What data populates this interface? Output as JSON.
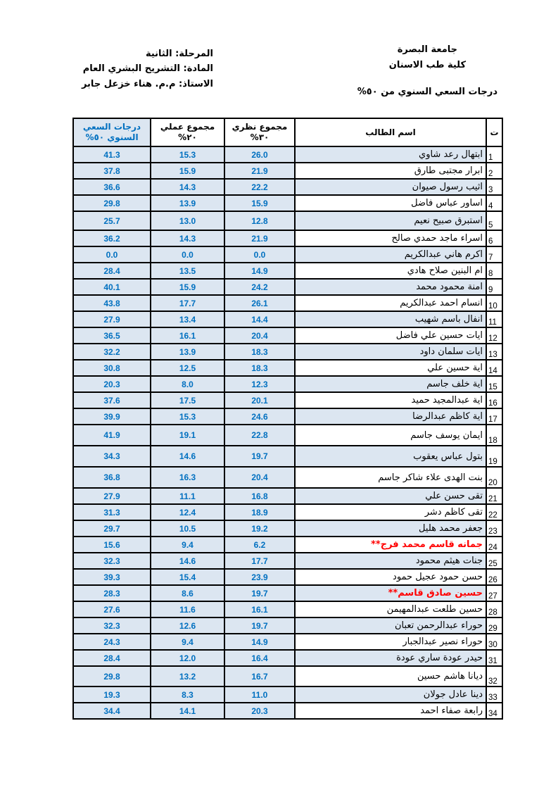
{
  "header": {
    "university": "جامعة البصرة",
    "college": "كلية طب الاسنان",
    "subtitle": "درجات السعي  السنوي من ٥٠%",
    "stage": "المرحلة: الثانية",
    "subject": "المادة: التشريح البشري العام",
    "instructor": "الاستاذ: م.م. هناء خزعل جابر"
  },
  "table": {
    "headers": {
      "no": "ت",
      "name": "اسم الطالب",
      "theory": "مجموع نظري ٣٠%",
      "practical": "مجموع عملي ٢٠%",
      "total": "درجات السعي السنوي ٥٠%"
    },
    "rows": [
      {
        "no": "1",
        "name": "ابتهال رعد شاوي",
        "theory": "26.0",
        "practical": "15.3",
        "total": "41.3",
        "red": false
      },
      {
        "no": "2",
        "name": "ابرار مجتبى طارق",
        "theory": "21.9",
        "practical": "15.9",
        "total": "37.8",
        "red": false
      },
      {
        "no": "3",
        "name": "اثيب رسول صيوان",
        "theory": "22.2",
        "practical": "14.3",
        "total": "36.6",
        "red": false
      },
      {
        "no": "4",
        "name": "اساور عباس فاضل",
        "theory": "15.9",
        "practical": "13.9",
        "total": "29.8",
        "red": false
      },
      {
        "no": "5",
        "name": "استبرق صبيح نعيم",
        "theory": "12.8",
        "practical": "13.0",
        "total": "25.7",
        "red": false
      },
      {
        "no": "6",
        "name": "اسراء ماجد حمدي صالح",
        "theory": "21.9",
        "practical": "14.3",
        "total": "36.2",
        "red": false
      },
      {
        "no": "7",
        "name": "اكرم هاني عبدالكريم",
        "theory": "0.0",
        "practical": "0.0",
        "total": "0.0",
        "red": false
      },
      {
        "no": "8",
        "name": "ام البنين صلاح هادي",
        "theory": "14.9",
        "practical": "13.5",
        "total": "28.4",
        "red": false
      },
      {
        "no": "9",
        "name": "امنة محمود محمد",
        "theory": "24.2",
        "practical": "15.9",
        "total": "40.1",
        "red": false
      },
      {
        "no": "10",
        "name": "انسام احمد عبدالكريم",
        "theory": "26.1",
        "practical": "17.7",
        "total": "43.8",
        "red": false
      },
      {
        "no": "11",
        "name": "انفال باسم شهيب",
        "theory": "14.4",
        "practical": "13.4",
        "total": "27.9",
        "red": false
      },
      {
        "no": "12",
        "name": "ايات حسين علي فاضل",
        "theory": "20.4",
        "practical": "16.1",
        "total": "36.5",
        "red": false
      },
      {
        "no": "13",
        "name": "ايات سلمان داود",
        "theory": "18.3",
        "practical": "13.9",
        "total": "32.2",
        "red": false
      },
      {
        "no": "14",
        "name": "اية حسين علي",
        "theory": "18.3",
        "practical": "12.5",
        "total": "30.8",
        "red": false
      },
      {
        "no": "15",
        "name": "اية خلف جاسم",
        "theory": "12.3",
        "practical": "8.0",
        "total": "20.3",
        "red": false
      },
      {
        "no": "16",
        "name": "اية عبدالمجيد حميد",
        "theory": "20.1",
        "practical": "17.5",
        "total": "37.6",
        "red": false
      },
      {
        "no": "17",
        "name": "اية كاظم عبدالرضا",
        "theory": "24.6",
        "practical": "15.3",
        "total": "39.9",
        "red": false
      },
      {
        "no": "18",
        "name": "ايمان يوسف جاسم",
        "theory": "22.8",
        "practical": "19.1",
        "total": "41.9",
        "red": false
      },
      {
        "no": "19",
        "name": "بتول عباس يعقوب",
        "theory": "19.7",
        "practical": "14.6",
        "total": "34.3",
        "red": false
      },
      {
        "no": "20",
        "name": "بنت الهدى علاء شاكر جاسم",
        "theory": "20.4",
        "practical": "16.3",
        "total": "36.8",
        "red": false
      },
      {
        "no": "21",
        "name": "تقى حسن علي",
        "theory": "16.8",
        "practical": "11.1",
        "total": "27.9",
        "red": false
      },
      {
        "no": "22",
        "name": "تقى كاظم دشر",
        "theory": "18.9",
        "practical": "12.4",
        "total": "31.3",
        "red": false
      },
      {
        "no": "23",
        "name": "جعفر محمد هليل",
        "theory": "19.2",
        "practical": "10.5",
        "total": "29.7",
        "red": false
      },
      {
        "no": "24",
        "name": "جمانه قاسم محمد فرج**",
        "theory": "6.2",
        "practical": "9.4",
        "total": "15.6",
        "red": true
      },
      {
        "no": "25",
        "name": "جنات هيثم محمود",
        "theory": "17.7",
        "practical": "14.6",
        "total": "32.3",
        "red": false
      },
      {
        "no": "26",
        "name": "حسن حمود عجيل حمود",
        "theory": "23.9",
        "practical": "15.4",
        "total": "39.3",
        "red": false
      },
      {
        "no": "27",
        "name": "حسين صادق قاسم**",
        "theory": "19.7",
        "practical": "8.6",
        "total": "28.3",
        "red": true
      },
      {
        "no": "28",
        "name": "حسين طلعت عبدالمهيمن",
        "theory": "16.1",
        "practical": "11.6",
        "total": "27.6",
        "red": false
      },
      {
        "no": "29",
        "name": "حوراء عبدالرحمن تعبان",
        "theory": "19.7",
        "practical": "12.6",
        "total": "32.3",
        "red": false
      },
      {
        "no": "30",
        "name": "حوراء نصير عبدالجبار",
        "theory": "14.9",
        "practical": "9.4",
        "total": "24.3",
        "red": false
      },
      {
        "no": "31",
        "name": "حيدر عودة ساري عودة",
        "theory": "16.4",
        "practical": "12.0",
        "total": "28.4",
        "red": false
      },
      {
        "no": "32",
        "name": "ديانا هاشم حسين",
        "theory": "16.7",
        "practical": "13.2",
        "total": "29.8",
        "red": false
      },
      {
        "no": "33",
        "name": "دينا عادل جولان",
        "theory": "11.0",
        "practical": "8.3",
        "total": "19.3",
        "red": false
      },
      {
        "no": "34",
        "name": "رابعة صفاء احمد",
        "theory": "20.3",
        "practical": "14.1",
        "total": "34.4",
        "red": false
      }
    ]
  },
  "colors": {
    "score_text_blue": "#0070c0",
    "shaded_cell_fill": "#dce6f1",
    "flagged_name_red": "#ff0000",
    "border_black": "#000000"
  }
}
